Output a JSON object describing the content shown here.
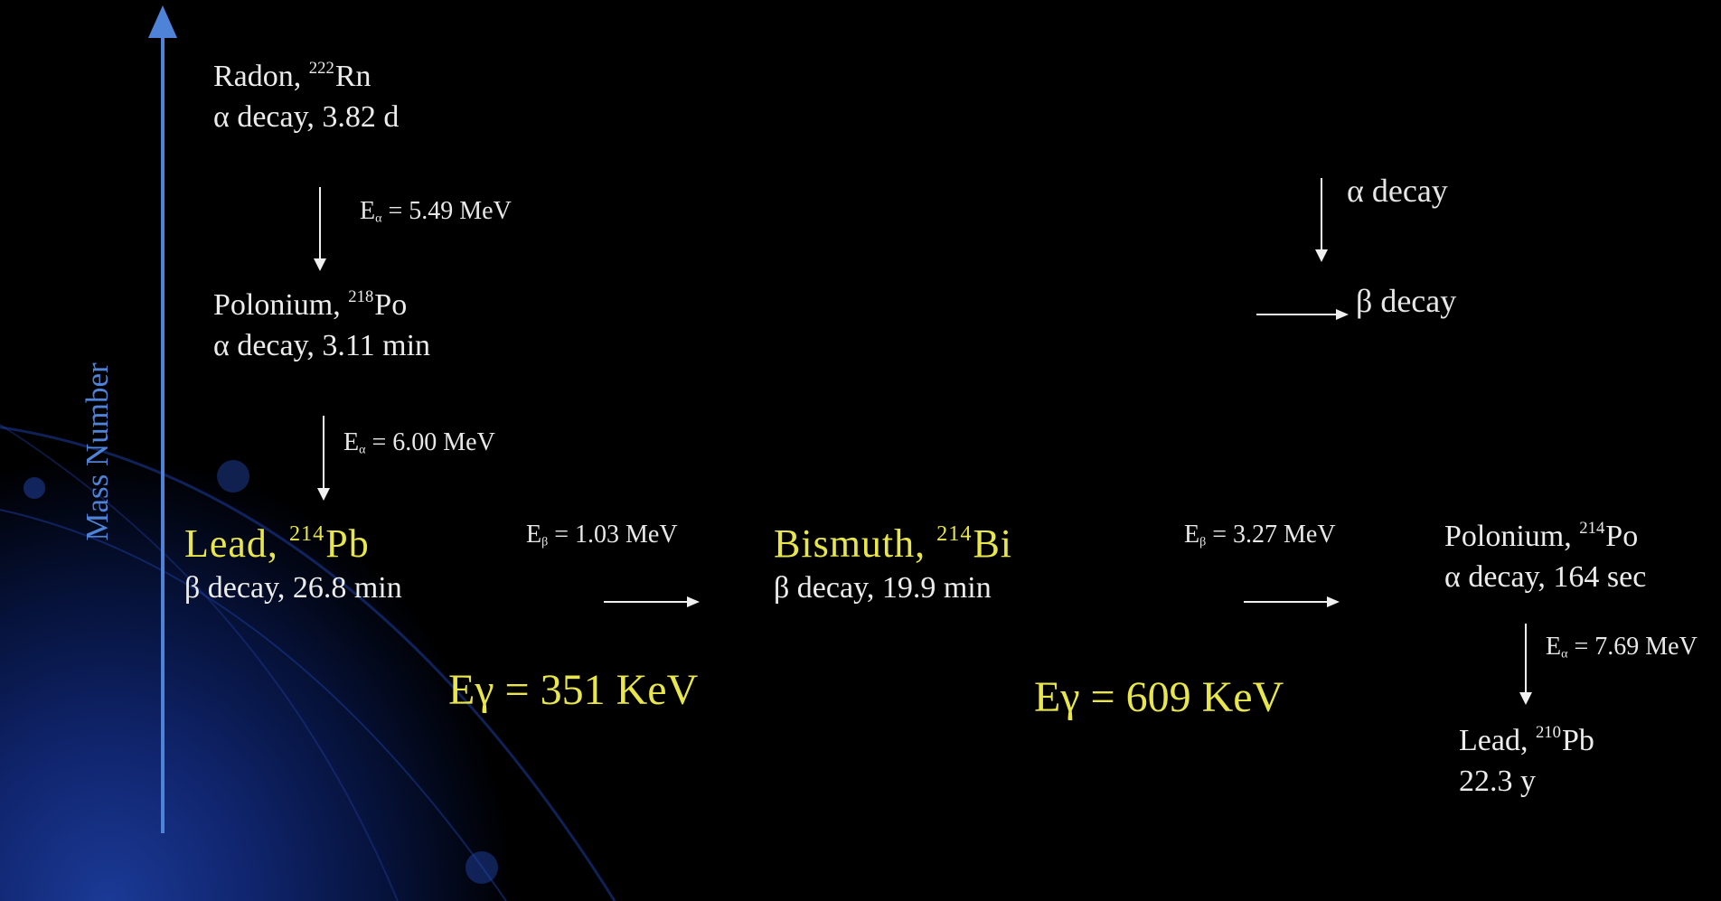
{
  "axis": {
    "label": "Mass Number",
    "color": "#4f83d8"
  },
  "colors": {
    "highlight": "#e8e64a",
    "text": "#ececec",
    "background": "#000000"
  },
  "nodes": {
    "radon": {
      "symbol": "Radon, ",
      "mass": "222",
      "element": "Rn",
      "decay": "α decay, 3.82 d"
    },
    "po218": {
      "symbol": "Polonium, ",
      "mass": "218",
      "element": "Po",
      "decay": "α decay, 3.11 min"
    },
    "lead214": {
      "symbol": "Lead, ",
      "mass": "214",
      "element": "Pb",
      "decay": "β decay, 26.8 min"
    },
    "bi214": {
      "symbol": "Bismuth, ",
      "mass": "214",
      "element": "Bi",
      "decay": "β decay, 19.9 min"
    },
    "po214": {
      "symbol": "Polonium, ",
      "mass": "214",
      "element": "Po",
      "decay": "α decay, 164 sec"
    },
    "lead210": {
      "symbol": "Lead, ",
      "mass": "210",
      "element": "Pb",
      "decay": "22.3 y"
    }
  },
  "energies": {
    "rn_to_po218": {
      "prefix": "E",
      "sub": "α",
      "value": " = 5.49 MeV"
    },
    "po218_to_pb": {
      "prefix": "E",
      "sub": "α",
      "value": " = 6.00 MeV"
    },
    "pb_to_bi": {
      "prefix": "E",
      "sub": "β",
      "value": " = 1.03 MeV"
    },
    "bi_to_po214": {
      "prefix": "E",
      "sub": "β",
      "value": " = 3.27 MeV"
    },
    "po214_to_pb210": {
      "prefix": "E",
      "sub": "α",
      "value": " = 7.69 MeV"
    }
  },
  "gamma": {
    "pb214": "Eγ = 351 KeV",
    "bi214": "Eγ = 609 KeV"
  },
  "legend": {
    "alpha": "α decay",
    "beta": "β decay"
  }
}
